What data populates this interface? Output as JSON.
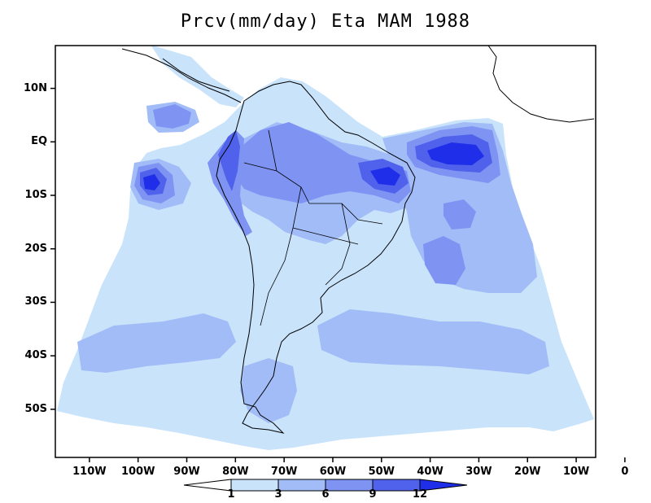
{
  "title": "Prcv(mm/day) Eta MAM 1988",
  "map": {
    "type": "filled-contour",
    "projection": "lat-lon regional (South America Eta domain)",
    "lat_labels": [
      {
        "lat": 10,
        "text": "10N"
      },
      {
        "lat": 0,
        "text": "EQ"
      },
      {
        "lat": -10,
        "text": "10S"
      },
      {
        "lat": -20,
        "text": "20S"
      },
      {
        "lat": -30,
        "text": "30S"
      },
      {
        "lat": -40,
        "text": "40S"
      },
      {
        "lat": -50,
        "text": "50S"
      }
    ],
    "lon_labels": [
      {
        "lon": -110,
        "text": "110W"
      },
      {
        "lon": -100,
        "text": "100W"
      },
      {
        "lon": -90,
        "text": "90W"
      },
      {
        "lon": -80,
        "text": "80W"
      },
      {
        "lon": -70,
        "text": "70W"
      },
      {
        "lon": -60,
        "text": "60W"
      },
      {
        "lon": -50,
        "text": "50W"
      },
      {
        "lon": -40,
        "text": "40W"
      },
      {
        "lon": -30,
        "text": "30W"
      },
      {
        "lon": -20,
        "text": "20W"
      },
      {
        "lon": -10,
        "text": "10W"
      },
      {
        "lon": 0,
        "text": "0"
      }
    ],
    "lon_range": [
      -117,
      -6
    ],
    "lat_range": [
      -59,
      18
    ]
  },
  "colorbar": {
    "levels": [
      {
        "value": "1"
      },
      {
        "value": "3"
      },
      {
        "value": "6"
      },
      {
        "value": "9"
      },
      {
        "value": "12"
      }
    ],
    "colors": [
      "#ffffff",
      "#c9e3fb",
      "#a2bcf8",
      "#7f94f2",
      "#5062eb",
      "#1f2ee8"
    ]
  },
  "colors": {
    "level1": "#c9e3fb",
    "level2": "#a2bcf8",
    "level3": "#7f94f2",
    "level4": "#5062eb",
    "level5": "#1f2ee8",
    "coast": "#000000"
  }
}
